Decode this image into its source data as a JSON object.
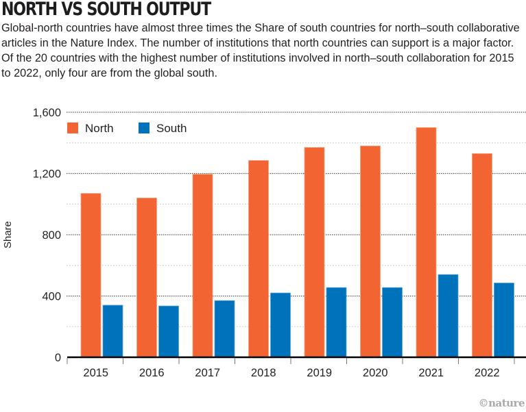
{
  "header": {
    "title": "NORTH VS SOUTH OUTPUT",
    "subtitle": "Global-north countries have almost three times the Share of south countries for north–south collaborative articles in the Nature Index. The number of institutions that north countries can support is a major factor. Of the 20 countries with the highest number of institutions involved in north–south collaboration for 2015 to 2022, only four are from the global south."
  },
  "credit": "©nature",
  "colors": {
    "north": "#f26532",
    "south": "#0072bc",
    "grid": "#9d9d9d",
    "axis": "#000000"
  },
  "chart_data": {
    "type": "bar",
    "title": "NORTH VS SOUTH OUTPUT",
    "xlabel": "",
    "ylabel": "Share",
    "ylim": [
      0,
      1600
    ],
    "yticks": [
      0,
      400,
      800,
      1200,
      1600
    ],
    "ytick_labels": [
      "0",
      "400",
      "800",
      "1,200",
      "1,600"
    ],
    "minor_grid": [
      200,
      600,
      1000,
      1400
    ],
    "grid": true,
    "legend_position": "top-left",
    "categories": [
      "2015",
      "2016",
      "2017",
      "2018",
      "2019",
      "2020",
      "2021",
      "2022"
    ],
    "series": [
      {
        "name": "North",
        "values": [
          1070,
          1040,
          1195,
          1285,
          1370,
          1380,
          1500,
          1330
        ]
      },
      {
        "name": "South",
        "values": [
          340,
          335,
          370,
          420,
          455,
          455,
          540,
          485
        ]
      }
    ]
  }
}
